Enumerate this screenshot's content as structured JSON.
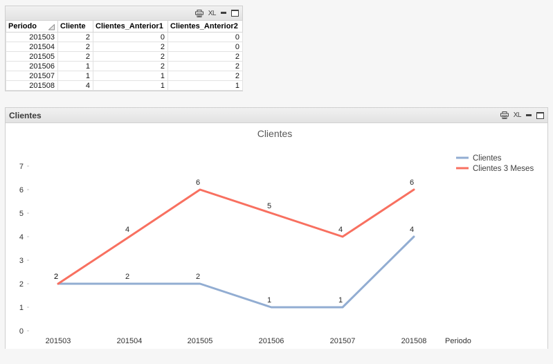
{
  "window_controls": {
    "excel_label": "XL",
    "icons": [
      "print",
      "excel-export",
      "minimize",
      "maximize"
    ]
  },
  "table_window": {
    "caption_title": "",
    "columns": [
      {
        "label": "Periodo",
        "sorted": true
      },
      {
        "label": "Cliente",
        "sorted": false
      },
      {
        "label": "Clientes_Anterior1",
        "sorted": false
      },
      {
        "label": "Clientes_Anterior2",
        "sorted": false
      }
    ],
    "rows": [
      [
        "201503",
        "2",
        "0",
        "0"
      ],
      [
        "201504",
        "2",
        "2",
        "0"
      ],
      [
        "201505",
        "2",
        "2",
        "2"
      ],
      [
        "201506",
        "1",
        "2",
        "2"
      ],
      [
        "201507",
        "1",
        "1",
        "2"
      ],
      [
        "201508",
        "4",
        "1",
        "1"
      ]
    ]
  },
  "chart_window": {
    "caption_title": "Clientes"
  },
  "chart_data": {
    "type": "line",
    "title": "Clientes",
    "categories": [
      "201503",
      "201504",
      "201505",
      "201506",
      "201507",
      "201508"
    ],
    "series": [
      {
        "name": "Clientes",
        "color": "#92add2",
        "values": [
          2,
          2,
          2,
          1,
          1,
          4
        ]
      },
      {
        "name": "Clientes 3 Meses",
        "color": "#f87060",
        "values": [
          2,
          4,
          6,
          5,
          4,
          6
        ]
      }
    ],
    "xlabel": "Periodo",
    "ylabel": "",
    "ylim": [
      0,
      7
    ],
    "yticks": [
      0,
      1,
      2,
      3,
      4,
      5,
      6,
      7
    ],
    "legend_position": "top-right",
    "grid": false,
    "data_labels": true,
    "title_color": "#595959",
    "axis_text_color": "#333333",
    "label_text_color": "#262626"
  }
}
